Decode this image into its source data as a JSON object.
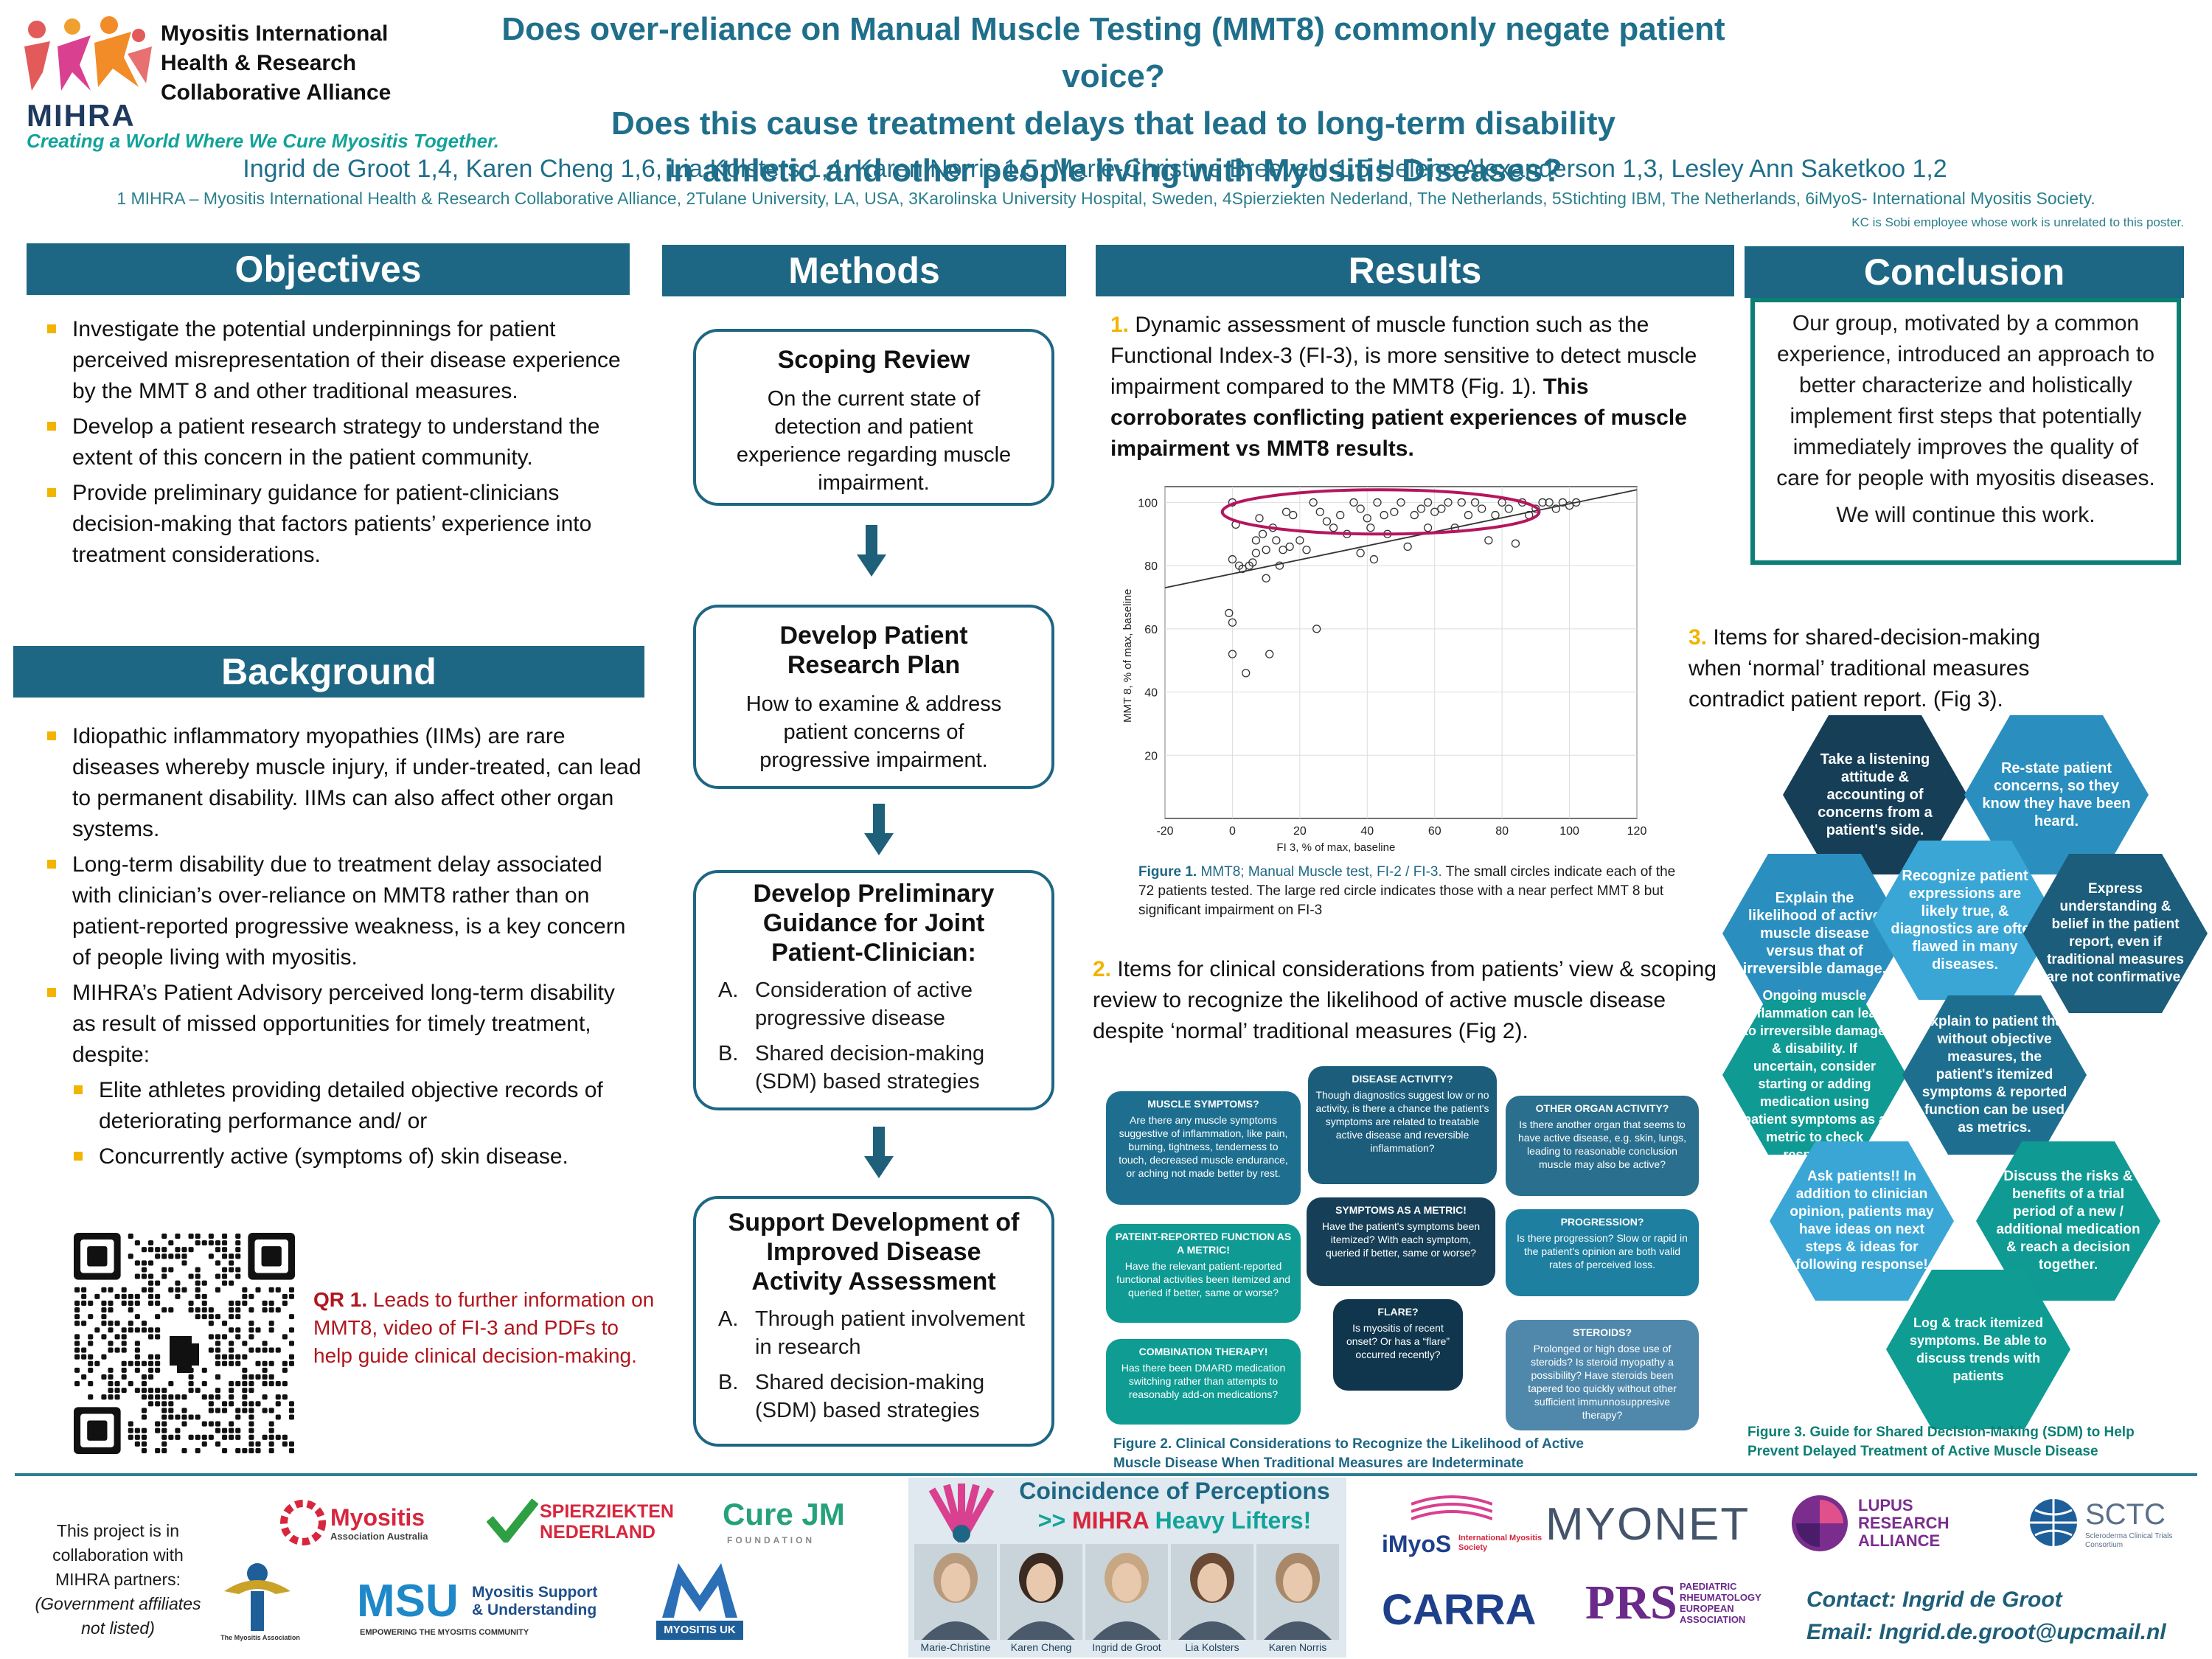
{
  "header": {
    "logo_word": "MIHRA",
    "org_lines": [
      "Myositis International",
      "Health & Research",
      "Collaborative Alliance"
    ],
    "tagline": "Creating a World Where We Cure Myositis Together.",
    "title_lines": [
      "Does over-reliance on Manual Muscle Testing (MMT8) commonly negate patient voice?",
      "Does this cause treatment delays that lead to long-term disability",
      "in athletic and other people living with Myositis Diseases?"
    ],
    "authors": "Ingrid de Groot 1,4, Karen Cheng 1,6, Lia Kolsters 1,4, Karen Norris 1,5, Marie-Christine Breeveld 1,5 Helene Alexanderson 1,3, Lesley Ann Saketkoo 1,2",
    "affiliations": "1 MIHRA – Myositis International Health & Research Collaborative Alliance,  2Tulane University, LA, USA, 3Karolinska University Hospital, Sweden, 4Spierziekten Nederland, The Netherlands,  5Stichting IBM, The Netherlands, 6iMyoS- International Myositis Society.",
    "kc_note": "KC is Sobi employee whose work is unrelated to this poster."
  },
  "objectives": {
    "heading": "Objectives",
    "items": [
      "Investigate the potential underpinnings for patient perceived misrepresentation of their disease experience by the MMT 8 and other traditional measures.",
      "Develop a patient research strategy to understand the extent of this concern in the patient community.",
      "Provide preliminary guidance for patient-clinicians decision-making that factors patients’ experience into treatment considerations."
    ]
  },
  "background": {
    "heading": "Background",
    "items": [
      "Idiopathic inflammatory myopathies (IIMs) are rare diseases whereby muscle injury, if under-treated, can lead to permanent disability. IIMs can also affect other organ systems.",
      "Long-term disability due to treatment delay associated with clinician’s over-reliance on MMT8 rather than on patient-reported progressive weakness, is a key concern of people living with myositis.",
      "MIHRA’s Patient Advisory perceived long-term disability as result of missed opportunities for timely treatment, despite:"
    ],
    "sub_items": [
      "Elite athletes providing detailed objective records of deteriorating performance and/ or",
      "Concurrently active (symptoms of) skin disease."
    ],
    "qr_label": "QR 1.",
    "qr_text": "Leads to further information on MMT8, video of FI-3 and PDFs to help guide clinical decision-making."
  },
  "methods": {
    "heading": "Methods",
    "box1_title": "Scoping Review",
    "box1_text": "On the current state of detection and patient experience regarding muscle impairment.",
    "box2_title": "Develop Patient Research Plan",
    "box2_text": "How to examine & address patient concerns of progressive impairment.",
    "box3_title": "Develop Preliminary Guidance for Joint Patient-Clinician:",
    "box3_items": [
      {
        "k": "A.",
        "t": "Consideration of active progressive disease"
      },
      {
        "k": "B.",
        "t": "Shared decision-making (SDM) based strategies"
      }
    ],
    "box4_title": "Support Development of Improved Disease Activity Assessment",
    "box4_items": [
      {
        "k": "A.",
        "t": "Through patient involvement in research"
      },
      {
        "k": "B.",
        "t": "Shared decision-making (SDM) based strategies"
      }
    ]
  },
  "results": {
    "heading": "Results",
    "r1_num": "1.",
    "r1_text": "Dynamic assessment of muscle function such as the Functional Index-3 (FI-3), is more sensitive to detect muscle impairment compared to the MMT8 (Fig. 1).",
    "r1_bold": "This corroborates conflicting patient experiences of muscle impairment vs MMT8 results.",
    "fig1_label": "Figure 1.",
    "fig1_text_a": "MMT8; Manual Muscle test, FI-2 / FI-3.",
    "fig1_text_b": "The small circles  indicate each of the 72 patients tested. The large red circle indicates those with a near perfect MMT 8 but significant impairment on FI-3",
    "r2_num": "2.",
    "r2_text": "Items for clinical considerations from patients’ view & scoping review to recognize the likelihood of active muscle disease despite ‘normal’ traditional measures (Fig 2).",
    "fig2_label": "Figure 2.",
    "fig2_text": "Clinical Considerations to Recognize the Likelihood of Active Muscle Disease When Traditional Measures are Indeterminate",
    "cards": [
      {
        "title": "MUSCLE SYMPTOMS?",
        "text": "Are there any muscle symptoms suggestive of inflammation, like pain, burning, tightness, tenderness to touch, decreased muscle endurance, or aching not made better by rest."
      },
      {
        "title": "DISEASE ACTIVITY?",
        "text": "Though diagnostics suggest low or no activity, is there a chance the patient's symptoms are related to treatable active disease and reversible inflammation?"
      },
      {
        "title": "OTHER ORGAN ACTIVITY?",
        "text": "Is there another organ that seems to have active disease, e.g. skin, lungs, leading to reasonable conclusion muscle may also be active?"
      },
      {
        "title": "PATEINT-REPORTED FUNCTION AS A METRIC!",
        "text": "Have the relevant patient-reported functional activities been itemized and queried if better, same or worse?"
      },
      {
        "title": "SYMPTOMS AS A METRIC!",
        "text": "Have the patient's symptoms been itemized? With each symptom, queried if better, same or worse?"
      },
      {
        "title": "PROGRESSION?",
        "text": "Is there progression? Slow or rapid in the patient's opinion are both valid rates of perceived loss."
      },
      {
        "title": "COMBINATION THERAPY!",
        "text": "Has there been DMARD medication switching rather than attempts to reasonably add-on medications?"
      },
      {
        "title": "FLARE?",
        "text": "Is myositis of recent onset? Or has a “flare” occurred recently?"
      },
      {
        "title": "STEROIDS?",
        "text": "Prolonged or high dose use of steroids? Is steroid myopathy a possibility? Have steroids been tapered too quickly without other sufficient immunnosuppresive therapy?"
      }
    ]
  },
  "chart_data": {
    "type": "scatter",
    "xlabel": "FI 3, % of max, baseline",
    "ylabel": "MMT 8, % of max, baseline",
    "xlim": [
      -20,
      120
    ],
    "ylim": [
      0,
      105
    ],
    "xticks": [
      -20,
      0,
      20,
      40,
      60,
      80,
      100,
      120
    ],
    "yticks": [
      20,
      40,
      60,
      80,
      100
    ],
    "grid": true,
    "points": [
      [
        0,
        100
      ],
      [
        1,
        93
      ],
      [
        0,
        82
      ],
      [
        2,
        80
      ],
      [
        -1,
        65
      ],
      [
        0,
        62
      ],
      [
        0,
        52
      ],
      [
        4,
        46
      ],
      [
        3,
        79
      ],
      [
        5,
        80
      ],
      [
        6,
        81
      ],
      [
        7,
        88
      ],
      [
        7,
        84
      ],
      [
        8,
        95
      ],
      [
        9,
        90
      ],
      [
        10,
        85
      ],
      [
        10,
        76
      ],
      [
        11,
        52
      ],
      [
        12,
        92
      ],
      [
        13,
        88
      ],
      [
        14,
        80
      ],
      [
        15,
        85
      ],
      [
        16,
        97
      ],
      [
        17,
        86
      ],
      [
        18,
        96
      ],
      [
        20,
        88
      ],
      [
        22,
        85
      ],
      [
        24,
        100
      ],
      [
        25,
        60
      ],
      [
        26,
        97
      ],
      [
        28,
        94
      ],
      [
        30,
        92
      ],
      [
        32,
        96
      ],
      [
        34,
        90
      ],
      [
        36,
        100
      ],
      [
        38,
        98
      ],
      [
        40,
        95
      ],
      [
        41,
        92
      ],
      [
        42,
        82
      ],
      [
        43,
        100
      ],
      [
        45,
        96
      ],
      [
        48,
        97
      ],
      [
        50,
        100
      ],
      [
        52,
        86
      ],
      [
        54,
        96
      ],
      [
        56,
        98
      ],
      [
        58,
        100
      ],
      [
        60,
        97
      ],
      [
        62,
        98
      ],
      [
        64,
        100
      ],
      [
        66,
        92
      ],
      [
        68,
        100
      ],
      [
        70,
        96
      ],
      [
        72,
        100
      ],
      [
        74,
        98
      ],
      [
        76,
        88
      ],
      [
        78,
        96
      ],
      [
        80,
        100
      ],
      [
        82,
        98
      ],
      [
        84,
        87
      ],
      [
        86,
        100
      ],
      [
        88,
        96
      ],
      [
        90,
        98
      ],
      [
        92,
        100
      ],
      [
        94,
        100
      ],
      [
        96,
        98
      ],
      [
        98,
        100
      ],
      [
        100,
        99
      ],
      [
        102,
        100
      ],
      [
        38,
        84
      ],
      [
        46,
        90
      ],
      [
        58,
        92
      ]
    ],
    "trendline": [
      [
        -20,
        73
      ],
      [
        120,
        104
      ]
    ],
    "highlight_ellipse": {
      "cx": 44,
      "cy": 97,
      "rx": 47,
      "ry": 7
    }
  },
  "conclusion": {
    "heading": "Conclusion",
    "text1": "Our group, motivated by a common experience, introduced an approach to better characterize and holistically implement first steps that potentially immediately improves the quality of care for people with myositis diseases.",
    "text2": "We will continue this work.",
    "r3_num": "3.",
    "r3_text": "Items for shared-decision-making when ‘normal’ traditional measures contradict patient report. (Fig 3).",
    "fig3_label": "Figure 3.",
    "fig3_text": "Guide for Shared Decision-Making (SDM) to Help Prevent Delayed Treatment of Active Muscle Disease",
    "hexes": [
      "Take a listening attitude & accounting of concerns from a patient's side.",
      "Re-state patient concerns, so they know they have been heard.",
      "Explain the likelihood of active muscle disease versus that of irreversible damage.",
      "Recognize patient expressions are likely true, & diagnostics are often flawed in many diseases.",
      "Express understanding & belief in the patient report, even if traditional measures are not confirmative.",
      "Ongoing muscle inflammation can lead to irreversible damage & disability. If uncertain, consider starting or adding medication using patient symptoms as a metric to check response.",
      "Explain to patient that without objective measures, the patient's itemized symptoms & reported function can be used as metrics.",
      "Ask patients!! In addition to clinician opinion, patients may have ideas on next steps & ideas for following response!",
      "Discuss the risks & benefits of a trial period of a new / additional medication & reach a decision together.",
      "Log & track itemized symptoms. Be able to discuss trends with patients"
    ]
  },
  "footer": {
    "collab_text": "This project is in collaboration with MIHRA partners:",
    "collab_note": "(Government affiliates not listed)",
    "partners": [
      "Myositis",
      "Association Australia",
      "SPIERZIEKTEN NEDERLAND",
      "Cure JM",
      "FOUNDATION",
      "The Myositis Association",
      "MSU",
      "Myositis Support & Understanding",
      "EMPOWERING THE MYOSITIS COMMUNITY",
      "MYOSITIS UK",
      "iMyoS",
      "International Myositis Society",
      "MYONET",
      "CARRA",
      "PRS",
      "PAEDIATRIC RHEUMATOLOGY EUROPEAN ASSOCIATION",
      "LUPUS RESEARCH ALLIANCE",
      "SCTC",
      "Scleroderma Clinical Trials Consortium"
    ],
    "banner_line1": "Coincidence of Perceptions",
    "banner_line2_a": ">> ",
    "banner_line2_b": "MIHRA",
    "banner_line2_c": " Heavy Lifters!",
    "people": [
      "Marie-Christine",
      "Karen Cheng",
      "Ingrid de Groot",
      "Lia Kolsters",
      "Karen Norris"
    ],
    "contact": "Contact: Ingrid de Groot",
    "email": "Email: Ingrid.de.groot@upcmail.nl"
  },
  "colors": {
    "accent": "#1e6784",
    "teal": "#12a39a",
    "bullet": "#f2b400",
    "highlight_red": "#b5165d"
  }
}
